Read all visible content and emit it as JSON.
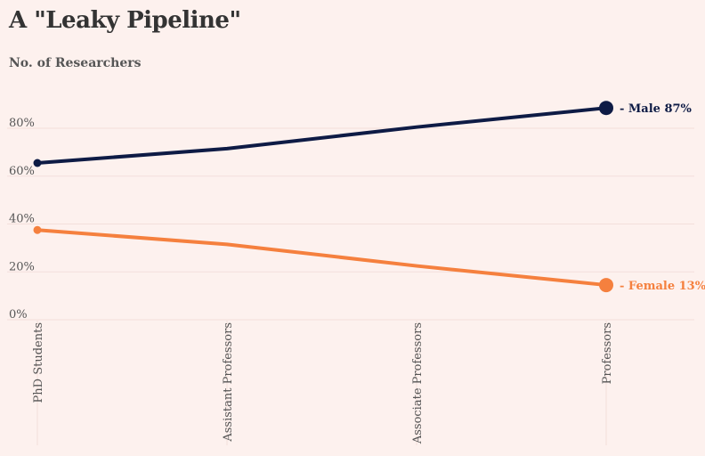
{
  "chart_data": {
    "type": "line",
    "title": "A \"Leaky Pipeline\"",
    "subtitle": "No. of Researchers",
    "categories": [
      "PhD Students",
      "Assistant Professors",
      "Associate Professors",
      "Professors"
    ],
    "y_ticks": [
      "0%",
      "20%",
      "40%",
      "60%",
      "80%"
    ],
    "ylim": [
      0,
      100
    ],
    "grid": true,
    "series": [
      {
        "name": "Male",
        "values": [
          64,
          70,
          79,
          87
        ],
        "color": "#0e1b45",
        "end_label": "- Male 87%"
      },
      {
        "name": "Female",
        "values": [
          36,
          30,
          21,
          13
        ],
        "color": "#f5803e",
        "end_label": "- Female 13%"
      }
    ]
  }
}
